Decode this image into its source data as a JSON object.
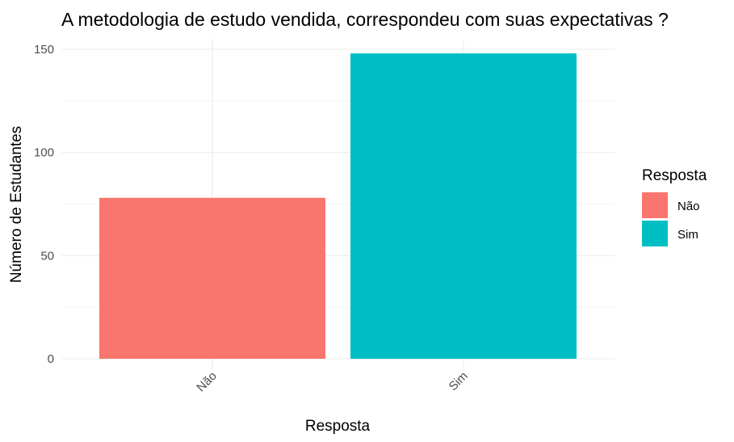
{
  "chart_data": {
    "type": "bar",
    "title": "A metodologia de estudo vendida, correspondeu com suas expectativas ?",
    "xlabel": "Resposta",
    "ylabel": "Número de Estudantes",
    "categories": [
      "Não",
      "Sim"
    ],
    "values": [
      78,
      148
    ],
    "colors": [
      "#F8766D",
      "#00BFC4"
    ],
    "ylim": [
      0,
      150
    ],
    "yticks": [
      0,
      50,
      100,
      150
    ],
    "grid": true,
    "legend": {
      "title": "Resposta",
      "position": "right",
      "entries": [
        "Não",
        "Sim"
      ]
    }
  }
}
